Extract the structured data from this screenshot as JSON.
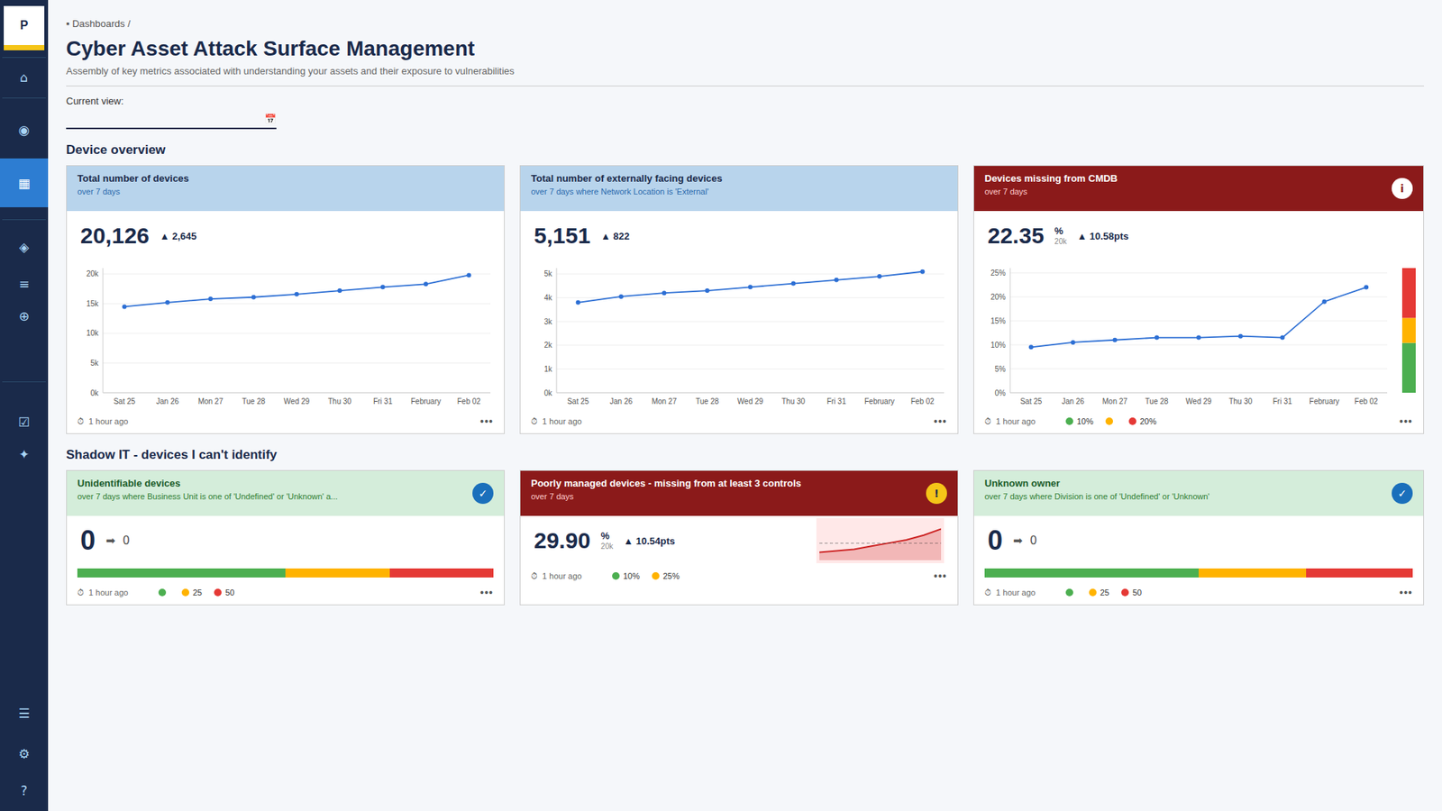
{
  "page": {
    "colors": {
      "background": "#f5f7fa",
      "sidebar": "#1a2a4a",
      "sidebar_active": "#2d7dd2",
      "text": "#1a2a4a"
    },
    "sidebar": {
      "logo": "P",
      "icons": [
        "⌂",
        "◉",
        "▦",
        "◈",
        "≡",
        "⊕",
        "☑",
        "✦",
        "☰",
        "⚙",
        "?"
      ]
    },
    "breadcrumb": "▪ Dashboards /",
    "title": "Cyber Asset Attack Surface Management",
    "subtitle": "Assembly of key metrics associated with understanding your assets and their exposure to vulnerabilities",
    "current_view_label": "Current view:",
    "calendar_icon": "📅",
    "section1_title": "Device overview",
    "section2_title": "Shadow IT - devices I can't identify",
    "menu_icon": "•••",
    "cards": [
      {
        "header_color": "#b8d4ec",
        "header_text_color": "#1a2a4a",
        "subtitle_color": "#2a6aad",
        "value": "20,126",
        "delta": "▲ 2,645",
        "time_label": "⏱  1 hour ago"
      },
      {
        "header_color": "#b8d4ec",
        "header_text_color": "#1a2a4a",
        "subtitle_color": "#2a6aad",
        "value": "5,151",
        "delta": "▲ 822",
        "time_label": "⏱  1 hour ago"
      },
      {
        "header_color": "#8b1a1a",
        "header_text_color": "#ffffff",
        "subtitle_color": "#ffcccc",
        "badge": {
          "text": "i",
          "color": "#ffffff",
          "text_color": "#8b1a1a"
        },
        "value": "22.35",
        "value_suffix": "%",
        "value_sub": "20k",
        "delta": "▲ 10.58pts",
        "time_label": "⏱  1 hour ago",
        "legend": [
          {
            "color": "#4caf50",
            "label": "10%"
          },
          {
            "color": "#ffb300"
          },
          {
            "color": "#e53935",
            "label": "20%"
          }
        ]
      },
      {
        "title": "Unidentifiable devices",
        "subtitle": "over 7 days where Business Unit is one of 'Undefined' or 'Unknown' a...",
        "header_color": "#d4edda",
        "header_text_color": "#1a5c2a",
        "subtitle_color": "#2e7d32",
        "badge": {
          "text": "✓",
          "color": "#1a6fbb",
          "text_color": "#ffffff"
        },
        "value": "0",
        "delta": "➡  0",
        "time_label": "⏱  1 hour ago",
        "progress": [
          {
            "share": 50,
            "color": "#4caf50"
          },
          {
            "share": 25,
            "color": "#ffb300"
          },
          {
            "share": 25,
            "color": "#e53935"
          }
        ],
        "legend": [
          {
            "color": "#4caf50"
          },
          {
            "color": "#ffb300",
            "label": "25"
          },
          {
            "color": "#e53935",
            "label": "50"
          }
        ]
      },
      {
        "header_color": "#8b1a1a",
        "header_text_color": "#ffffff",
        "subtitle_color": "#ffcccc",
        "badge": {
          "text": "!",
          "color": "#f5c518",
          "text_color": "#1a2a4a"
        },
        "value": "29.90",
        "value_suffix": "%",
        "value_sub": "20k",
        "delta": "▲ 10.54pts",
        "time_label": "⏱  1 hour ago",
        "legend": [
          {
            "color": "#4caf50",
            "label": "10%"
          },
          {
            "color": "#ffb300",
            "label": "25%"
          }
        ]
      },
      {
        "title": "Unknown owner",
        "subtitle": "over 7 days where Division is one of 'Undefined' or 'Unknown'",
        "header_color": "#d4edda",
        "header_text_color": "#1a5c2a",
        "subtitle_color": "#2e7d32",
        "badge": {
          "text": "✓",
          "color": "#1a6fbb",
          "text_color": "#ffffff"
        },
        "value": "0",
        "delta": "➡  0",
        "time_label": "⏱  1 hour ago",
        "progress": [
          {
            "share": 50,
            "color": "#4caf50"
          },
          {
            "share": 25,
            "color": "#ffb300"
          },
          {
            "share": 25,
            "color": "#e53935"
          }
        ],
        "legend": [
          {
            "color": "#4caf50"
          },
          {
            "color": "#ffb300",
            "label": "25"
          },
          {
            "color": "#e53935",
            "label": "50"
          }
        ]
      }
    ]
  },
  "chart_data": [
    {
      "type": "line",
      "title": "Total number of devices",
      "subtitle": "over 7 days",
      "categories": [
        "Sat 25",
        "Jan 26",
        "Mon 27",
        "Tue 28",
        "Wed 29",
        "Thu 30",
        "Fri 31",
        "February",
        "Feb 02"
      ],
      "values": [
        14500,
        15200,
        15800,
        16100,
        16600,
        17200,
        17800,
        18300,
        19800
      ],
      "color": "#2d6fd4",
      "marker": "circle",
      "ylim": [
        0,
        21000
      ],
      "yticks": [
        {
          "value": 0,
          "label": "0k"
        },
        {
          "value": 5000,
          "label": "5k"
        },
        {
          "value": 10000,
          "label": "10k"
        },
        {
          "value": 15000,
          "label": "15k"
        },
        {
          "value": 20000,
          "label": "20k"
        }
      ],
      "grid": true
    },
    {
      "type": "line",
      "title": "Total number of externally facing devices",
      "subtitle": "over 7 days where Network Location is 'External'",
      "categories": [
        "Sat 25",
        "Jan 26",
        "Mon 27",
        "Tue 28",
        "Wed 29",
        "Thu 30",
        "Fri 31",
        "February",
        "Feb 02"
      ],
      "values": [
        3800,
        4050,
        4200,
        4300,
        4450,
        4600,
        4750,
        4900,
        5100
      ],
      "color": "#2d6fd4",
      "marker": "circle",
      "ylim": [
        0,
        5250
      ],
      "yticks": [
        {
          "value": 0,
          "label": "0k"
        },
        {
          "value": 1000,
          "label": "1k"
        },
        {
          "value": 2000,
          "label": "2k"
        },
        {
          "value": 3000,
          "label": "3k"
        },
        {
          "value": 4000,
          "label": "4k"
        },
        {
          "value": 5000,
          "label": "5k"
        }
      ],
      "grid": true
    },
    {
      "type": "line",
      "title": "Devices missing from CMDB",
      "subtitle": "over 7 days",
      "categories": [
        "Sat 25",
        "Jan 26",
        "Mon 27",
        "Tue 28",
        "Wed 29",
        "Thu 30",
        "Fri 31",
        "February",
        "Feb 02"
      ],
      "values": [
        9.5,
        10.5,
        11.0,
        11.5,
        11.5,
        11.8,
        11.5,
        19.0,
        22.0
      ],
      "color": "#2d6fd4",
      "marker": "circle",
      "ylim": [
        0,
        26
      ],
      "yticks": [
        {
          "value": 0,
          "label": "0%"
        },
        {
          "value": 5,
          "label": "5%"
        },
        {
          "value": 10,
          "label": "10%"
        },
        {
          "value": 15,
          "label": "15%"
        },
        {
          "value": 20,
          "label": "20%"
        },
        {
          "value": 25,
          "label": "25%"
        }
      ],
      "grid": true,
      "color_bar": {
        "range": [
          0,
          25
        ],
        "segments": [
          {
            "from": 0,
            "to": 10,
            "color": "#4caf50"
          },
          {
            "from": 10,
            "to": 15,
            "color": "#ffb300"
          },
          {
            "from": 15,
            "to": 25,
            "color": "#e53935"
          }
        ]
      }
    },
    {
      "type": "area",
      "title": "Poorly managed devices - missing from at least 3 controls",
      "subtitle": "over 7 days",
      "x": [
        0,
        1,
        2,
        3,
        4,
        5,
        6,
        7
      ],
      "values": [
        5,
        6,
        7,
        9,
        11,
        13,
        16,
        20
      ],
      "mean": 10.875,
      "color": "#cc2222",
      "xlim": [
        0,
        7
      ],
      "ylim": [
        0,
        25
      ],
      "tick_labels": false,
      "grid": false
    }
  ]
}
